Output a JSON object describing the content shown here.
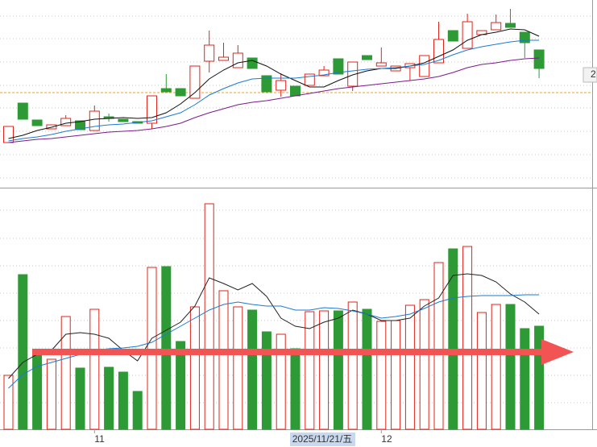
{
  "chart_data": {
    "type": "candlestick",
    "categories": [
      null,
      null,
      null,
      null,
      null,
      null,
      "11",
      null,
      null,
      null,
      null,
      null,
      null,
      null,
      null,
      null,
      null,
      null,
      null,
      null,
      null,
      null,
      null,
      null,
      null,
      null,
      "12",
      null,
      null,
      null,
      null,
      null,
      null,
      null,
      null,
      null,
      null,
      null
    ],
    "open": [
      53,
      102,
      81,
      70,
      74,
      80,
      68,
      85,
      82,
      79,
      77,
      120,
      120,
      108,
      154,
      155,
      146,
      158,
      136,
      118,
      123,
      124,
      136,
      157,
      123,
      161,
      148,
      142,
      146,
      135,
      152,
      192,
      170,
      187,
      193,
      201,
      190,
      168
    ],
    "high": [
      73,
      102,
      81,
      75,
      87,
      80,
      99,
      89,
      82,
      79,
      111,
      138,
      120,
      148,
      192,
      177,
      174,
      158,
      136,
      139,
      123,
      138,
      148,
      157,
      153,
      161,
      171,
      148,
      151,
      161,
      203,
      192,
      213,
      192,
      212,
      219,
      190,
      168
    ],
    "low": [
      53,
      82,
      74,
      70,
      74,
      69,
      68,
      79,
      79,
      77,
      70,
      116,
      111,
      108,
      140,
      155,
      146,
      145,
      116,
      110,
      111,
      124,
      136,
      138,
      117,
      156,
      148,
      142,
      130,
      135,
      152,
      179,
      170,
      187,
      193,
      196,
      158,
      133
    ],
    "close": [
      73,
      82,
      74,
      75,
      83,
      69,
      92,
      83,
      79,
      77,
      111,
      116,
      111,
      148,
      174,
      159,
      164,
      145,
      116,
      130,
      111,
      138,
      143,
      138,
      153,
      156,
      152,
      148,
      151,
      161,
      181,
      179,
      203,
      192,
      202,
      196,
      177,
      145
    ],
    "up_color": "#e2231a",
    "down_color": "#2e9a35",
    "ylim": [
      0,
      230
    ],
    "ma_lines": [
      {
        "color": "#111111",
        "values": [
          58,
          62,
          68,
          72,
          77,
          79,
          82,
          83,
          84,
          83,
          84,
          90,
          101,
          115,
          132,
          143,
          152,
          155,
          148,
          138,
          130,
          122,
          122,
          130,
          137,
          142,
          145,
          145,
          148,
          152,
          160,
          168,
          180,
          187,
          190,
          194,
          193,
          185
        ]
      },
      {
        "color": "#1a7ad4",
        "values": [
          55,
          58,
          60,
          63,
          67,
          70,
          73,
          75,
          76,
          78,
          80,
          85,
          90,
          100,
          112,
          120,
          127,
          132,
          133,
          133,
          133,
          135,
          137,
          140,
          142,
          144,
          145,
          146,
          148,
          150,
          155,
          162,
          168,
          172,
          175,
          178,
          180,
          180
        ]
      },
      {
        "color": "#7a1a8c",
        "values": [
          53,
          55,
          57,
          58,
          60,
          62,
          64,
          66,
          67,
          68,
          70,
          73,
          77,
          84,
          90,
          95,
          100,
          103,
          105,
          108,
          111,
          114,
          117,
          120,
          122,
          124,
          126,
          128,
          130,
          132,
          135,
          140,
          146,
          150,
          152,
          155,
          157,
          158
        ]
      }
    ],
    "reference_line": {
      "value": 115,
      "color": "#f0a020"
    },
    "price_label": "2",
    "cursor_label": "2025/11/21/五",
    "volume": {
      "values": [
        67,
        192,
        98,
        87,
        140,
        76,
        149,
        77,
        71,
        47,
        201,
        202,
        109,
        152,
        280,
        172,
        152,
        148,
        121,
        118,
        100,
        146,
        147,
        147,
        158,
        149,
        134,
        135,
        154,
        161,
        207,
        224,
        227,
        145,
        155,
        155,
        125,
        128
      ],
      "ylim": [
        0,
        298
      ],
      "ma_lines": [
        {
          "color": "#222222",
          "values": [
            63,
            83,
            93,
            98,
            118,
            120,
            118,
            113,
            98,
            85,
            113,
            123,
            133,
            153,
            188,
            181,
            173,
            181,
            165,
            138,
            128,
            125,
            133,
            138,
            148,
            143,
            135,
            135,
            138,
            153,
            163,
            191,
            193,
            191,
            183,
            168,
            158,
            143
          ]
        },
        {
          "color": "#1a7ad4",
          "values": [
            51,
            68,
            78,
            83,
            88,
            93,
            98,
            100,
            101,
            103,
            108,
            118,
            128,
            138,
            148,
            155,
            158,
            155,
            153,
            153,
            148,
            148,
            151,
            150,
            147,
            143,
            138,
            140,
            143,
            150,
            158,
            163,
            165,
            166,
            166,
            166,
            167,
            167
          ]
        }
      ]
    }
  }
}
